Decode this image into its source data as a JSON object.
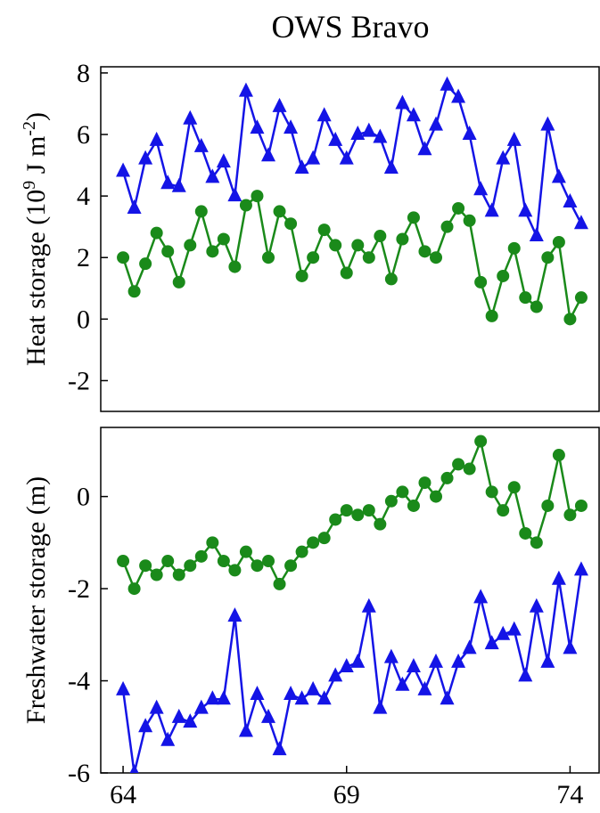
{
  "chart_data": [
    {
      "type": "line",
      "title": "OWS Bravo",
      "ylabel": [
        "Heat storage (10",
        "9",
        " J m",
        "-2",
        ")"
      ],
      "x": [
        64,
        64.25,
        64.5,
        64.75,
        65,
        65.25,
        65.5,
        65.75,
        66,
        66.25,
        66.5,
        66.75,
        67,
        67.25,
        67.5,
        67.75,
        68,
        68.25,
        68.5,
        68.75,
        69,
        69.25,
        69.5,
        69.75,
        70,
        70.25,
        70.5,
        70.75,
        71,
        71.25,
        71.5,
        71.75,
        72,
        72.25,
        72.5,
        72.75,
        73,
        73.25,
        73.5,
        73.75,
        74,
        74.25
      ],
      "xlim": [
        63.5,
        74.65
      ],
      "ylim": [
        -3,
        8.2
      ],
      "yticks": [
        -2,
        0,
        2,
        4,
        6,
        8
      ],
      "series": [
        {
          "color": "#1414e6",
          "marker": "triangle",
          "values": [
            4.8,
            3.6,
            5.2,
            5.8,
            4.4,
            4.3,
            6.5,
            5.6,
            4.6,
            5.1,
            4.0,
            7.4,
            6.2,
            5.3,
            6.9,
            6.2,
            4.9,
            5.2,
            6.6,
            5.8,
            5.2,
            6.0,
            6.1,
            5.9,
            4.9,
            7.0,
            6.6,
            5.5,
            6.3,
            7.6,
            7.2,
            6.0,
            4.2,
            3.5,
            5.2,
            5.8,
            3.5,
            2.7,
            6.3,
            4.6,
            3.8,
            3.1
          ]
        },
        {
          "color": "#1a8a1a",
          "marker": "circle",
          "values": [
            2.0,
            0.9,
            1.8,
            2.8,
            2.2,
            1.2,
            2.4,
            3.5,
            2.2,
            2.6,
            1.7,
            3.7,
            4.0,
            2.0,
            3.5,
            3.1,
            1.4,
            2.0,
            2.9,
            2.4,
            1.5,
            2.4,
            2.0,
            2.7,
            1.3,
            2.6,
            3.3,
            2.2,
            2.0,
            3.0,
            3.6,
            3.2,
            1.2,
            0.1,
            1.4,
            2.3,
            0.7,
            0.4,
            2.0,
            2.5,
            0.0,
            0.7
          ]
        }
      ]
    },
    {
      "type": "line",
      "ylabel": [
        "Freshwater storage (m)"
      ],
      "x": [
        64,
        64.25,
        64.5,
        64.75,
        65,
        65.25,
        65.5,
        65.75,
        66,
        66.25,
        66.5,
        66.75,
        67,
        67.25,
        67.5,
        67.75,
        68,
        68.25,
        68.5,
        68.75,
        69,
        69.25,
        69.5,
        69.75,
        70,
        70.25,
        70.5,
        70.75,
        71,
        71.25,
        71.5,
        71.75,
        72,
        72.25,
        72.5,
        72.75,
        73,
        73.25,
        73.5,
        73.75,
        74,
        74.25
      ],
      "xlim": [
        63.5,
        74.65
      ],
      "xticks": [
        64,
        69,
        74
      ],
      "ylim": [
        -6,
        1.5
      ],
      "yticks": [
        -6,
        -4,
        -2,
        0
      ],
      "series": [
        {
          "color": "#1a8a1a",
          "marker": "circle",
          "values": [
            -1.4,
            -2.0,
            -1.5,
            -1.7,
            -1.4,
            -1.7,
            -1.5,
            -1.3,
            -1.0,
            -1.4,
            -1.6,
            -1.2,
            -1.5,
            -1.4,
            -1.9,
            -1.5,
            -1.2,
            -1.0,
            -0.9,
            -0.5,
            -0.3,
            -0.4,
            -0.3,
            -0.6,
            -0.1,
            0.1,
            -0.2,
            0.3,
            0.0,
            0.4,
            0.7,
            0.6,
            1.2,
            0.1,
            -0.3,
            0.2,
            -0.8,
            -1.0,
            -0.2,
            0.9,
            -0.4,
            -0.2
          ]
        },
        {
          "color": "#1414e6",
          "marker": "triangle",
          "values": [
            -4.2,
            -6.0,
            -5.0,
            -4.6,
            -5.3,
            -4.8,
            -4.9,
            -4.6,
            -4.4,
            -4.4,
            -2.6,
            -5.1,
            -4.3,
            -4.8,
            -5.5,
            -4.3,
            -4.4,
            -4.2,
            -4.4,
            -3.9,
            -3.7,
            -3.6,
            -2.4,
            -4.6,
            -3.5,
            -4.1,
            -3.7,
            -4.2,
            -3.6,
            -4.4,
            -3.6,
            -3.3,
            -2.2,
            -3.2,
            -3.0,
            -2.9,
            -3.9,
            -2.4,
            -3.6,
            -1.8,
            -3.3,
            -1.6
          ]
        }
      ]
    }
  ]
}
